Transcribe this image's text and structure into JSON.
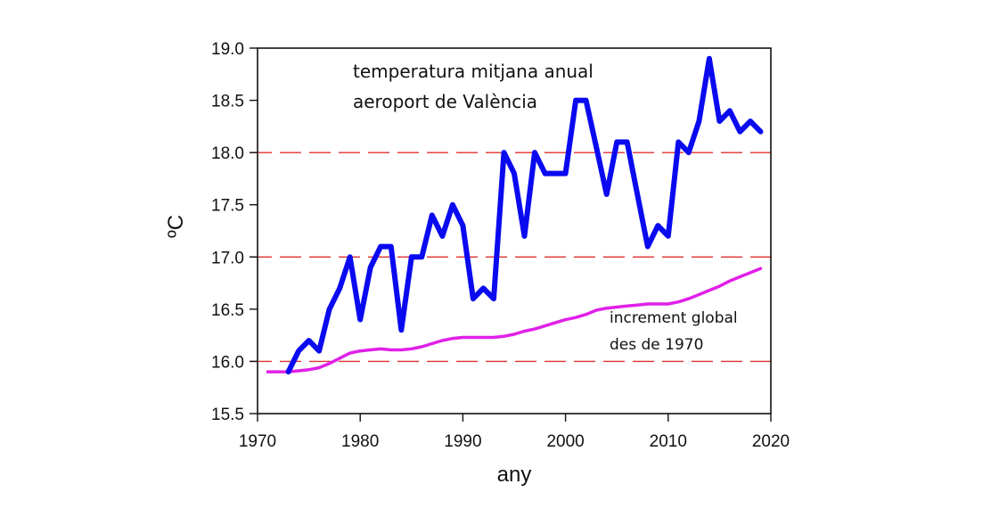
{
  "chart_data": {
    "type": "line",
    "title": "",
    "xlabel": "any",
    "ylabel": "ºC",
    "xlim": [
      1970,
      2020
    ],
    "ylim": [
      15.5,
      19.0
    ],
    "xticks": [
      1970,
      1980,
      1990,
      2000,
      2010,
      2020
    ],
    "xtick_labels": [
      "1970",
      "1980",
      "1990",
      "2000",
      "2010",
      "2020"
    ],
    "yticks": [
      15.5,
      16.0,
      16.5,
      17.0,
      17.5,
      18.0,
      18.5,
      19.0
    ],
    "ytick_labels": [
      "15.5",
      "16.0",
      "16.5",
      "17.0",
      "17.5",
      "18.0",
      "18.5",
      "19.0"
    ],
    "grid": false,
    "reference_lines": {
      "orientation": "horizontal",
      "style": "dashed",
      "color": "#e03030",
      "values": [
        16.0,
        17.0,
        18.0
      ]
    },
    "annotations": [
      {
        "id": "main",
        "lines": [
          "temperatura mitjana anual",
          "aeroport de València"
        ],
        "placement": "top-left"
      },
      {
        "id": "global",
        "lines": [
          "increment global",
          "des de 1970"
        ],
        "placement": "lower-right"
      }
    ],
    "series": [
      {
        "name": "temperatura mitjana anual aeroport de València",
        "color": "#0a0af0",
        "x": [
          1973,
          1974,
          1975,
          1976,
          1977,
          1978,
          1979,
          1980,
          1981,
          1982,
          1983,
          1984,
          1985,
          1986,
          1987,
          1988,
          1989,
          1990,
          1991,
          1992,
          1993,
          1994,
          1995,
          1996,
          1997,
          1998,
          1999,
          2000,
          2001,
          2002,
          2003,
          2004,
          2005,
          2006,
          2007,
          2008,
          2009,
          2010,
          2011,
          2012,
          2013,
          2014,
          2015,
          2016,
          2017,
          2018,
          2019
        ],
        "values": [
          15.9,
          16.1,
          16.2,
          16.1,
          16.5,
          16.7,
          17.0,
          16.4,
          16.9,
          17.1,
          17.1,
          16.3,
          17.0,
          17.0,
          17.4,
          17.2,
          17.5,
          17.3,
          16.6,
          16.7,
          16.6,
          18.0,
          17.8,
          17.2,
          18.0,
          17.8,
          17.8,
          17.8,
          18.5,
          18.5,
          18.05,
          17.6,
          18.1,
          18.1,
          17.6,
          17.1,
          17.3,
          17.2,
          18.1,
          18.0,
          18.3,
          18.9,
          18.3,
          18.4,
          18.2,
          18.3,
          18.2
        ]
      },
      {
        "name": "increment global des de 1970",
        "color": "#e020e8",
        "x": [
          1971,
          1972,
          1973,
          1974,
          1975,
          1976,
          1977,
          1978,
          1979,
          1980,
          1981,
          1982,
          1983,
          1984,
          1985,
          1986,
          1987,
          1988,
          1989,
          1990,
          1991,
          1992,
          1993,
          1994,
          1995,
          1996,
          1997,
          1998,
          1999,
          2000,
          2001,
          2002,
          2003,
          2004,
          2005,
          2006,
          2007,
          2008,
          2009,
          2010,
          2011,
          2012,
          2013,
          2014,
          2015,
          2016,
          2017,
          2018,
          2019
        ],
        "values": [
          15.9,
          15.9,
          15.9,
          15.91,
          15.92,
          15.94,
          15.98,
          16.03,
          16.08,
          16.1,
          16.11,
          16.12,
          16.11,
          16.11,
          16.12,
          16.14,
          16.17,
          16.2,
          16.22,
          16.23,
          16.23,
          16.23,
          16.23,
          16.24,
          16.26,
          16.29,
          16.31,
          16.34,
          16.37,
          16.4,
          16.42,
          16.45,
          16.49,
          16.51,
          16.52,
          16.53,
          16.54,
          16.55,
          16.55,
          16.55,
          16.57,
          16.6,
          16.64,
          16.68,
          16.72,
          16.77,
          16.81,
          16.85,
          16.89
        ]
      }
    ]
  }
}
